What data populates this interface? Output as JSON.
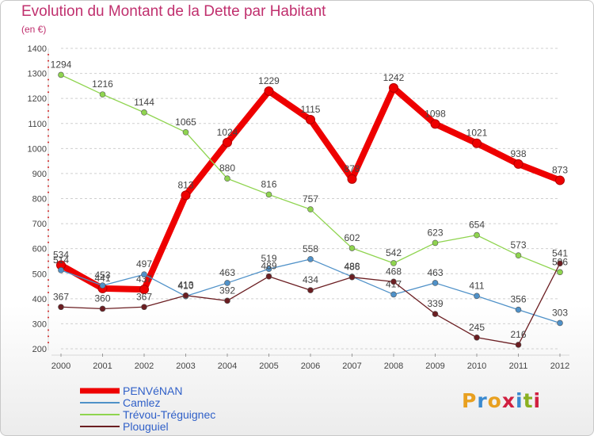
{
  "header": {
    "title": "Evolution du Montant de la Dette par Habitant",
    "subtitle": "(en €)"
  },
  "branding": {
    "logo_text": "Proxiti",
    "logo_colors": [
      "#e8a020",
      "#3a8ad0",
      "#e8a020",
      "#d02040",
      "#3a8ad0",
      "#8ab020",
      "#d02040"
    ]
  },
  "chart_data": {
    "type": "line",
    "x": [
      "2000",
      "2001",
      "2002",
      "2003",
      "2004",
      "2005",
      "2006",
      "2007",
      "2008",
      "2009",
      "2010",
      "2011",
      "2012"
    ],
    "ylim": [
      200,
      1400
    ],
    "yticks": [
      200,
      300,
      400,
      500,
      600,
      700,
      800,
      900,
      1000,
      1100,
      1200,
      1300,
      1400
    ],
    "grid": "horizontal dashed",
    "legend_position": "bottom-left",
    "series": [
      {
        "name": "PENVéNAN",
        "color": "#ee0000",
        "values": [
          534,
          441,
          437,
          813,
          1024,
          1229,
          1115,
          878,
          1242,
          1098,
          1021,
          938,
          873
        ]
      },
      {
        "name": "Camlez",
        "color": "#4f91c8",
        "values": [
          514,
          453,
          497,
          410,
          463,
          519,
          558,
          488,
          417,
          463,
          411,
          356,
          303
        ]
      },
      {
        "name": "Trévou-Tréguignec",
        "color": "#8fd44f",
        "values": [
          1294,
          1216,
          1144,
          1065,
          880,
          816,
          757,
          602,
          542,
          623,
          654,
          573,
          506
        ]
      },
      {
        "name": "Plouguiel",
        "color": "#6b1e22",
        "values": [
          367,
          360,
          367,
          413,
          392,
          489,
          434,
          486,
          468,
          339,
          245,
          216,
          541
        ]
      }
    ]
  }
}
